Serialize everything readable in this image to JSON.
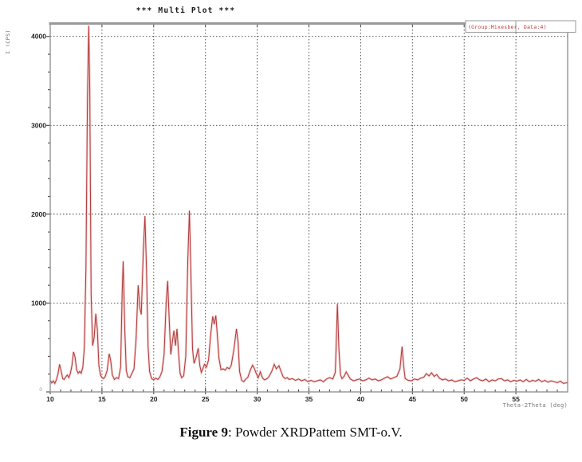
{
  "figure": {
    "title": "***  Multi Plot  ***",
    "legend_text": "(Group:Mixesber, Data:4)",
    "caption_label": "Figure 9",
    "caption_text": ": Powder XRDPattem SMT-o.V."
  },
  "colors": {
    "line": "#b23a3a",
    "line_halo": "#eaaaaa",
    "grid": "#3c3c3c",
    "border": "#8c8c8c",
    "top_border": "#9a9a9a",
    "tick": "#333333",
    "legend_border": "#999999",
    "legend_text": "#c23434"
  },
  "chart_data": {
    "type": "line",
    "title": "***  Multi Plot  ***",
    "xlabel": "Theta-2Theta (deg)",
    "ylabel": "I (CPS)",
    "xlim": [
      10,
      60
    ],
    "ylim": [
      0,
      4150
    ],
    "xticks": [
      10,
      15,
      20,
      25,
      30,
      35,
      40,
      45,
      50,
      55
    ],
    "xtick_labels": [
      "10",
      "15",
      "20",
      "25",
      "30",
      "35",
      "40",
      "45",
      "50",
      "55"
    ],
    "yticks": [
      0,
      1000,
      2000,
      3000,
      4000
    ],
    "ytick_labels": [
      "0",
      "1000",
      "2000",
      "3000",
      "4000"
    ],
    "x_minor_step": 1,
    "y_minor_step": 200,
    "grid": true,
    "legend_position": "top-right",
    "legend": "(Group:Mixesber, Data:4)",
    "series": [
      {
        "name": "(Group:Mixesber, Data:4)",
        "color": "#b23a3a",
        "points": [
          [
            10.0,
            130
          ],
          [
            10.15,
            100
          ],
          [
            10.3,
            125
          ],
          [
            10.45,
            95
          ],
          [
            10.6,
            140
          ],
          [
            10.75,
            200
          ],
          [
            10.9,
            310
          ],
          [
            11.05,
            240
          ],
          [
            11.2,
            150
          ],
          [
            11.35,
            140
          ],
          [
            11.5,
            170
          ],
          [
            11.65,
            190
          ],
          [
            11.8,
            160
          ],
          [
            11.95,
            210
          ],
          [
            12.1,
            300
          ],
          [
            12.25,
            450
          ],
          [
            12.4,
            390
          ],
          [
            12.55,
            250
          ],
          [
            12.7,
            210
          ],
          [
            12.85,
            230
          ],
          [
            13.0,
            210
          ],
          [
            13.15,
            280
          ],
          [
            13.3,
            500
          ],
          [
            13.45,
            1400
          ],
          [
            13.6,
            3300
          ],
          [
            13.72,
            4120
          ],
          [
            13.82,
            3400
          ],
          [
            13.95,
            1100
          ],
          [
            14.1,
            520
          ],
          [
            14.25,
            620
          ],
          [
            14.4,
            880
          ],
          [
            14.55,
            700
          ],
          [
            14.7,
            300
          ],
          [
            14.85,
            190
          ],
          [
            15.0,
            160
          ],
          [
            15.15,
            150
          ],
          [
            15.3,
            170
          ],
          [
            15.5,
            240
          ],
          [
            15.7,
            430
          ],
          [
            15.85,
            350
          ],
          [
            16.0,
            190
          ],
          [
            16.2,
            140
          ],
          [
            16.4,
            160
          ],
          [
            16.6,
            150
          ],
          [
            16.8,
            280
          ],
          [
            16.95,
            1100
          ],
          [
            17.05,
            1470
          ],
          [
            17.2,
            700
          ],
          [
            17.35,
            240
          ],
          [
            17.5,
            170
          ],
          [
            17.7,
            160
          ],
          [
            17.9,
            210
          ],
          [
            18.1,
            260
          ],
          [
            18.3,
            600
          ],
          [
            18.5,
            1200
          ],
          [
            18.65,
            950
          ],
          [
            18.8,
            870
          ],
          [
            19.0,
            1600
          ],
          [
            19.15,
            1980
          ],
          [
            19.3,
            1400
          ],
          [
            19.45,
            520
          ],
          [
            19.6,
            230
          ],
          [
            19.8,
            150
          ],
          [
            20.0,
            135
          ],
          [
            20.2,
            155
          ],
          [
            20.4,
            140
          ],
          [
            20.6,
            170
          ],
          [
            20.8,
            230
          ],
          [
            21.0,
            420
          ],
          [
            21.2,
            1000
          ],
          [
            21.35,
            1250
          ],
          [
            21.5,
            800
          ],
          [
            21.65,
            420
          ],
          [
            21.8,
            560
          ],
          [
            21.95,
            690
          ],
          [
            22.1,
            520
          ],
          [
            22.25,
            710
          ],
          [
            22.4,
            430
          ],
          [
            22.55,
            210
          ],
          [
            22.7,
            160
          ],
          [
            22.9,
            180
          ],
          [
            23.1,
            400
          ],
          [
            23.3,
            1500
          ],
          [
            23.45,
            2040
          ],
          [
            23.6,
            1300
          ],
          [
            23.75,
            480
          ],
          [
            23.9,
            320
          ],
          [
            24.1,
            390
          ],
          [
            24.3,
            490
          ],
          [
            24.45,
            300
          ],
          [
            24.6,
            220
          ],
          [
            24.75,
            260
          ],
          [
            24.9,
            310
          ],
          [
            25.1,
            280
          ],
          [
            25.3,
            360
          ],
          [
            25.5,
            640
          ],
          [
            25.7,
            850
          ],
          [
            25.85,
            760
          ],
          [
            26.0,
            860
          ],
          [
            26.15,
            640
          ],
          [
            26.3,
            380
          ],
          [
            26.5,
            250
          ],
          [
            26.7,
            260
          ],
          [
            26.9,
            245
          ],
          [
            27.1,
            275
          ],
          [
            27.3,
            260
          ],
          [
            27.5,
            300
          ],
          [
            27.75,
            480
          ],
          [
            28.0,
            710
          ],
          [
            28.15,
            560
          ],
          [
            28.3,
            230
          ],
          [
            28.5,
            130
          ],
          [
            28.7,
            115
          ],
          [
            28.9,
            145
          ],
          [
            29.1,
            165
          ],
          [
            29.35,
            250
          ],
          [
            29.55,
            300
          ],
          [
            29.7,
            270
          ],
          [
            29.9,
            210
          ],
          [
            30.1,
            160
          ],
          [
            30.3,
            225
          ],
          [
            30.5,
            160
          ],
          [
            30.7,
            135
          ],
          [
            30.9,
            145
          ],
          [
            31.1,
            165
          ],
          [
            31.4,
            230
          ],
          [
            31.65,
            310
          ],
          [
            31.85,
            260
          ],
          [
            32.1,
            295
          ],
          [
            32.3,
            230
          ],
          [
            32.5,
            170
          ],
          [
            32.7,
            150
          ],
          [
            32.9,
            160
          ],
          [
            33.1,
            140
          ],
          [
            33.4,
            150
          ],
          [
            33.7,
            130
          ],
          [
            34.0,
            145
          ],
          [
            34.3,
            125
          ],
          [
            34.6,
            140
          ],
          [
            34.9,
            115
          ],
          [
            35.2,
            130
          ],
          [
            35.5,
            115
          ],
          [
            35.8,
            125
          ],
          [
            36.1,
            135
          ],
          [
            36.4,
            115
          ],
          [
            36.7,
            145
          ],
          [
            37.0,
            160
          ],
          [
            37.3,
            145
          ],
          [
            37.55,
            220
          ],
          [
            37.75,
            990
          ],
          [
            37.9,
            480
          ],
          [
            38.05,
            190
          ],
          [
            38.2,
            150
          ],
          [
            38.4,
            175
          ],
          [
            38.6,
            225
          ],
          [
            38.8,
            185
          ],
          [
            39.0,
            145
          ],
          [
            39.3,
            125
          ],
          [
            39.6,
            135
          ],
          [
            39.9,
            145
          ],
          [
            40.2,
            125
          ],
          [
            40.5,
            135
          ],
          [
            40.8,
            155
          ],
          [
            41.1,
            135
          ],
          [
            41.4,
            145
          ],
          [
            41.7,
            125
          ],
          [
            42.0,
            135
          ],
          [
            42.3,
            155
          ],
          [
            42.6,
            170
          ],
          [
            42.9,
            145
          ],
          [
            43.2,
            160
          ],
          [
            43.5,
            175
          ],
          [
            43.8,
            260
          ],
          [
            44.0,
            510
          ],
          [
            44.15,
            290
          ],
          [
            44.3,
            150
          ],
          [
            44.6,
            130
          ],
          [
            44.9,
            125
          ],
          [
            45.2,
            145
          ],
          [
            45.5,
            135
          ],
          [
            45.8,
            155
          ],
          [
            46.1,
            165
          ],
          [
            46.35,
            205
          ],
          [
            46.6,
            180
          ],
          [
            46.85,
            215
          ],
          [
            47.1,
            175
          ],
          [
            47.35,
            195
          ],
          [
            47.6,
            155
          ],
          [
            47.9,
            135
          ],
          [
            48.2,
            145
          ],
          [
            48.5,
            125
          ],
          [
            48.8,
            135
          ],
          [
            49.1,
            115
          ],
          [
            49.4,
            125
          ],
          [
            49.7,
            135
          ],
          [
            50.0,
            130
          ],
          [
            50.3,
            155
          ],
          [
            50.6,
            125
          ],
          [
            50.9,
            145
          ],
          [
            51.2,
            160
          ],
          [
            51.5,
            135
          ],
          [
            51.8,
            125
          ],
          [
            52.1,
            145
          ],
          [
            52.4,
            115
          ],
          [
            52.7,
            135
          ],
          [
            53.0,
            125
          ],
          [
            53.3,
            145
          ],
          [
            53.6,
            150
          ],
          [
            53.9,
            125
          ],
          [
            54.2,
            135
          ],
          [
            54.5,
            115
          ],
          [
            54.8,
            130
          ],
          [
            55.1,
            120
          ],
          [
            55.4,
            135
          ],
          [
            55.7,
            115
          ],
          [
            56.0,
            140
          ],
          [
            56.3,
            115
          ],
          [
            56.6,
            130
          ],
          [
            56.9,
            120
          ],
          [
            57.2,
            140
          ],
          [
            57.5,
            115
          ],
          [
            57.8,
            130
          ],
          [
            58.1,
            110
          ],
          [
            58.4,
            125
          ],
          [
            58.7,
            115
          ],
          [
            59.0,
            105
          ],
          [
            59.3,
            120
          ],
          [
            59.6,
            95
          ],
          [
            60.0,
            105
          ]
        ]
      }
    ]
  }
}
